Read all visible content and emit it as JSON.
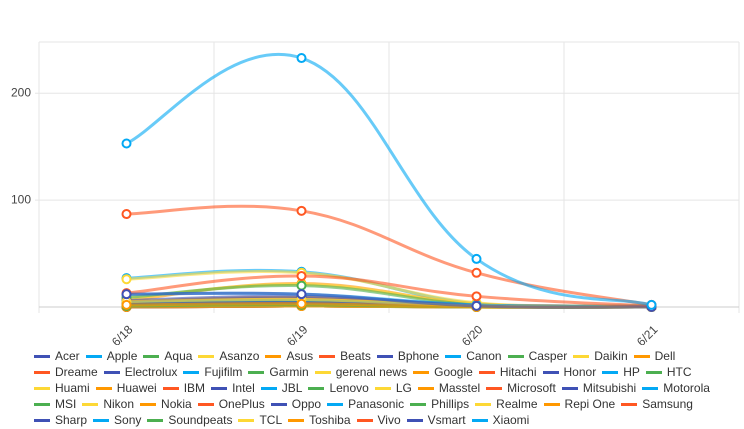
{
  "chart_data": {
    "type": "line",
    "categories": [
      "6/18",
      "6/19",
      "6/20",
      "6/21"
    ],
    "ylim": [
      0,
      248
    ],
    "yticks": [
      100,
      200
    ],
    "grid": true,
    "series": [
      {
        "name": "Acer",
        "color": "#3f51b5",
        "values": [
          5,
          8,
          1,
          0
        ]
      },
      {
        "name": "Apple",
        "color": "#03a9f4",
        "values": [
          27,
          33,
          3,
          1
        ]
      },
      {
        "name": "Aqua",
        "color": "#4caf50",
        "values": [
          3,
          6,
          1,
          0
        ]
      },
      {
        "name": "Asanzo",
        "color": "#fdd835",
        "values": [
          2,
          3,
          0,
          0
        ]
      },
      {
        "name": "Asus",
        "color": "#ff9800",
        "values": [
          6,
          22,
          3,
          0
        ]
      },
      {
        "name": "Beats",
        "color": "#ff5722",
        "values": [
          1,
          2,
          0,
          0
        ]
      },
      {
        "name": "Bphone",
        "color": "#3f51b5",
        "values": [
          0,
          1,
          0,
          0
        ]
      },
      {
        "name": "Canon",
        "color": "#03a9f4",
        "values": [
          2,
          4,
          1,
          0
        ]
      },
      {
        "name": "Casper",
        "color": "#4caf50",
        "values": [
          1,
          2,
          0,
          0
        ]
      },
      {
        "name": "Daikin",
        "color": "#fdd835",
        "values": [
          0,
          1,
          0,
          0
        ]
      },
      {
        "name": "Dell",
        "color": "#ff9800",
        "values": [
          3,
          5,
          1,
          0
        ]
      },
      {
        "name": "Dreame",
        "color": "#ff5722",
        "values": [
          0,
          1,
          0,
          0
        ]
      },
      {
        "name": "Electrolux",
        "color": "#3f51b5",
        "values": [
          1,
          2,
          0,
          0
        ]
      },
      {
        "name": "Fujifilm",
        "color": "#03a9f4",
        "values": [
          1,
          1,
          0,
          0
        ]
      },
      {
        "name": "Garmin",
        "color": "#4caf50",
        "values": [
          2,
          3,
          0,
          0
        ]
      },
      {
        "name": "gerenal news",
        "color": "#fdd835",
        "values": [
          0,
          1,
          0,
          0
        ]
      },
      {
        "name": "Google",
        "color": "#ff9800",
        "values": [
          4,
          6,
          2,
          0
        ]
      },
      {
        "name": "Hitachi",
        "color": "#ff5722",
        "values": [
          1,
          1,
          0,
          0
        ]
      },
      {
        "name": "Honor",
        "color": "#3f51b5",
        "values": [
          3,
          4,
          1,
          0
        ]
      },
      {
        "name": "HP",
        "color": "#03a9f4",
        "values": [
          4,
          5,
          1,
          0
        ]
      },
      {
        "name": "HTC",
        "color": "#4caf50",
        "values": [
          1,
          1,
          0,
          0
        ]
      },
      {
        "name": "Huami",
        "color": "#fdd835",
        "values": [
          1,
          1,
          0,
          0
        ]
      },
      {
        "name": "Huawei",
        "color": "#ff9800",
        "values": [
          5,
          9,
          2,
          1
        ]
      },
      {
        "name": "IBM",
        "color": "#ff5722",
        "values": [
          0,
          1,
          0,
          0
        ]
      },
      {
        "name": "Intel",
        "color": "#3f51b5",
        "values": [
          1,
          2,
          0,
          0
        ]
      },
      {
        "name": "JBL",
        "color": "#03a9f4",
        "values": [
          2,
          3,
          1,
          0
        ]
      },
      {
        "name": "Lenovo",
        "color": "#4caf50",
        "values": [
          3,
          4,
          1,
          0
        ]
      },
      {
        "name": "LG",
        "color": "#fdd835",
        "values": [
          8,
          21,
          3,
          0
        ]
      },
      {
        "name": "Masstel",
        "color": "#ff9800",
        "values": [
          0,
          1,
          0,
          0
        ]
      },
      {
        "name": "Microsoft",
        "color": "#ff5722",
        "values": [
          2,
          3,
          1,
          0
        ]
      },
      {
        "name": "Mitsubishi",
        "color": "#3f51b5",
        "values": [
          0,
          1,
          0,
          0
        ]
      },
      {
        "name": "Motorola",
        "color": "#03a9f4",
        "values": [
          1,
          2,
          0,
          0
        ]
      },
      {
        "name": "MSI",
        "color": "#4caf50",
        "values": [
          9,
          20,
          2,
          0
        ]
      },
      {
        "name": "Nikon",
        "color": "#fdd835",
        "values": [
          1,
          1,
          0,
          0
        ]
      },
      {
        "name": "Nokia",
        "color": "#ff9800",
        "values": [
          3,
          5,
          1,
          0
        ]
      },
      {
        "name": "OnePlus",
        "color": "#ff5722",
        "values": [
          2,
          3,
          1,
          0
        ]
      },
      {
        "name": "Oppo",
        "color": "#3f51b5",
        "values": [
          6,
          10,
          2,
          0
        ]
      },
      {
        "name": "Panasonic",
        "color": "#03a9f4",
        "values": [
          4,
          6,
          1,
          0
        ]
      },
      {
        "name": "Phillips",
        "color": "#4caf50",
        "values": [
          2,
          2,
          0,
          0
        ]
      },
      {
        "name": "Realme",
        "color": "#fdd835",
        "values": [
          26,
          32,
          4,
          1
        ]
      },
      {
        "name": "Repi One",
        "color": "#ff9800",
        "values": [
          0,
          1,
          0,
          0
        ]
      },
      {
        "name": "Samsung",
        "color": "#ff5722",
        "values": [
          87,
          90,
          32,
          2
        ]
      },
      {
        "name": "Sharp",
        "color": "#3f51b5",
        "values": [
          3,
          4,
          1,
          0
        ]
      },
      {
        "name": "Sony",
        "color": "#03a9f4",
        "values": [
          12,
          12,
          2,
          1
        ]
      },
      {
        "name": "Soundpeats",
        "color": "#4caf50",
        "values": [
          1,
          2,
          0,
          0
        ]
      },
      {
        "name": "TCL",
        "color": "#fdd835",
        "values": [
          5,
          7,
          1,
          0
        ]
      },
      {
        "name": "Toshiba",
        "color": "#ff9800",
        "values": [
          2,
          3,
          0,
          0
        ]
      },
      {
        "name": "Vivo",
        "color": "#ff5722",
        "values": [
          13,
          29,
          10,
          1
        ]
      },
      {
        "name": "Vsmart",
        "color": "#3f51b5",
        "values": [
          12,
          12,
          1,
          0
        ]
      },
      {
        "name": "Xiaomi",
        "color": "#03a9f4",
        "values": [
          153,
          233,
          45,
          2
        ]
      }
    ]
  }
}
